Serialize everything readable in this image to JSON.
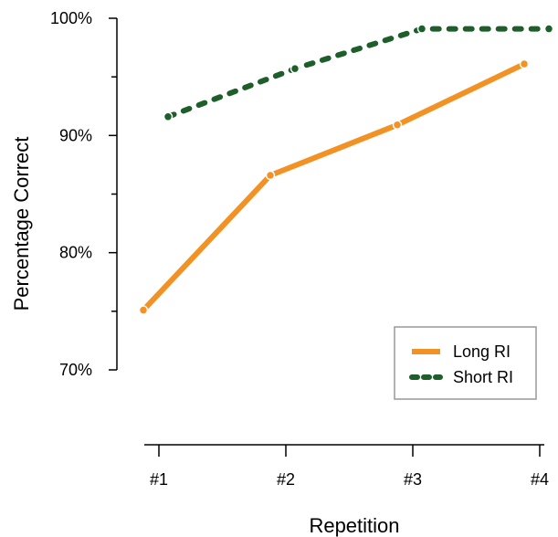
{
  "chart_data": {
    "type": "line",
    "title": "",
    "xlabel": "Repetition",
    "ylabel": "Percentage Correct",
    "categories": [
      "#1",
      "#2",
      "#3",
      "#4"
    ],
    "y_ticks": [
      "70%",
      "80%",
      "90%",
      "100%"
    ],
    "ylim": [
      70,
      100
    ],
    "grid": false,
    "legend_position": "bottom-right",
    "series": [
      {
        "name": "Long RI",
        "values": [
          75.1,
          86.6,
          90.9,
          96.1
        ],
        "color": "#f39224",
        "style": "solid"
      },
      {
        "name": "Short RI",
        "values": [
          91.6,
          95.7,
          99.1,
          99.1
        ],
        "color": "#1d5e2b",
        "style": "dashed"
      }
    ]
  }
}
